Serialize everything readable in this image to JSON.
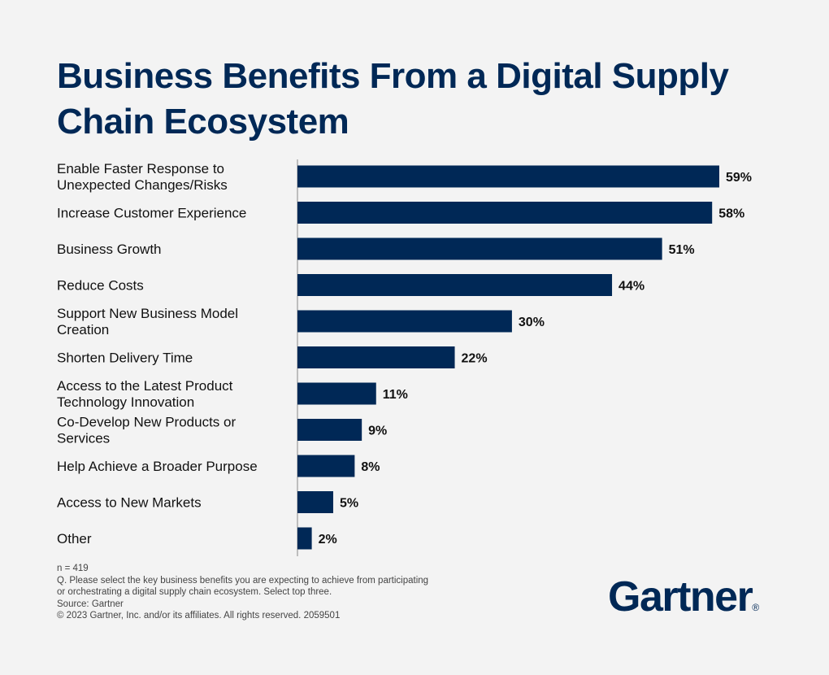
{
  "chart_data": {
    "type": "bar",
    "orientation": "horizontal",
    "title": "Business Benefits From a Digital Supply Chain Ecosystem",
    "categories": [
      [
        "Enable Faster Response to",
        "Unexpected Changes/Risks"
      ],
      [
        "Increase Customer Experience"
      ],
      [
        "Business Growth"
      ],
      [
        "Reduce Costs"
      ],
      [
        "Support New Business Model",
        "Creation"
      ],
      [
        "Shorten Delivery Time"
      ],
      [
        "Access to the Latest Product",
        "Technology Innovation"
      ],
      [
        "Co-Develop New Products or",
        "Services"
      ],
      [
        "Help Achieve a Broader Purpose"
      ],
      [
        "Access to New Markets"
      ],
      [
        "Other"
      ]
    ],
    "values": [
      59,
      58,
      51,
      44,
      30,
      22,
      11,
      9,
      8,
      5,
      2
    ],
    "value_labels": [
      "59%",
      "58%",
      "51%",
      "44%",
      "30%",
      "22%",
      "11%",
      "9%",
      "8%",
      "5%",
      "2%"
    ],
    "unit": "%",
    "xlim": [
      0,
      59
    ],
    "grid": false,
    "bar_color": "#002856"
  },
  "footer": {
    "n": "n = 419",
    "question_1": "Q. Please select the key business benefits you are expecting to achieve from participating",
    "question_2": "or orchestrating a digital supply chain ecosystem. Select top three.",
    "source": "Source: Gartner",
    "copyright": "© 2023 Gartner, Inc. and/or its affiliates. All rights reserved. 2059501"
  },
  "logo": {
    "text": "Gartner",
    "mark": "®"
  }
}
